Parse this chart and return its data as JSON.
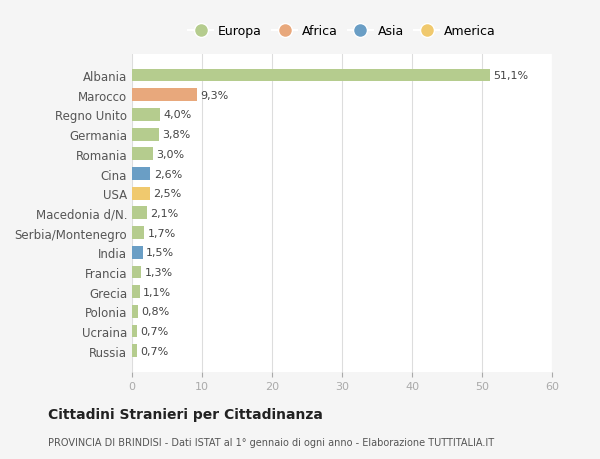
{
  "categories": [
    "Albania",
    "Marocco",
    "Regno Unito",
    "Germania",
    "Romania",
    "Cina",
    "USA",
    "Macedonia d/N.",
    "Serbia/Montenegro",
    "India",
    "Francia",
    "Grecia",
    "Polonia",
    "Ucraina",
    "Russia"
  ],
  "values": [
    51.1,
    9.3,
    4.0,
    3.8,
    3.0,
    2.6,
    2.5,
    2.1,
    1.7,
    1.5,
    1.3,
    1.1,
    0.8,
    0.7,
    0.7
  ],
  "labels": [
    "51,1%",
    "9,3%",
    "4,0%",
    "3,8%",
    "3,0%",
    "2,6%",
    "2,5%",
    "2,1%",
    "1,7%",
    "1,5%",
    "1,3%",
    "1,1%",
    "0,8%",
    "0,7%",
    "0,7%"
  ],
  "continent": [
    "Europa",
    "Africa",
    "Europa",
    "Europa",
    "Europa",
    "Asia",
    "America",
    "Europa",
    "Europa",
    "Asia",
    "Europa",
    "Europa",
    "Europa",
    "Europa",
    "Europa"
  ],
  "colors": {
    "Europa": "#b5cc8e",
    "Africa": "#e8a87c",
    "Asia": "#6a9ec5",
    "America": "#f0c96e"
  },
  "legend_order": [
    "Europa",
    "Africa",
    "Asia",
    "America"
  ],
  "xlim": [
    0,
    60
  ],
  "xticks": [
    0,
    10,
    20,
    30,
    40,
    50,
    60
  ],
  "title": "Cittadini Stranieri per Cittadinanza",
  "subtitle": "PROVINCIA DI BRINDISI - Dati ISTAT al 1° gennaio di ogni anno - Elaborazione TUTTITALIA.IT",
  "background_color": "#f5f5f5",
  "plot_bg_color": "#ffffff",
  "grid_color": "#dddddd",
  "bar_height": 0.65
}
